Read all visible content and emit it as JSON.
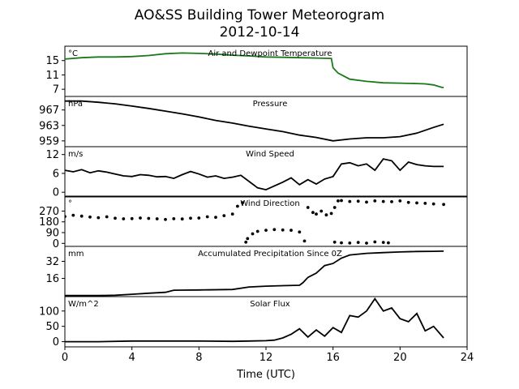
{
  "figure": {
    "title_line1": "AO&SS Building Tower Meteorogram",
    "title_line2": "2012-10-14",
    "xlabel": "Time (UTC)",
    "x_ticks": [
      "0",
      "4",
      "8",
      "12",
      "16",
      "20",
      "24"
    ]
  },
  "chart_data": [
    {
      "type": "line",
      "title": "Air and Dewpoint Temperature",
      "unit": "°C",
      "xlim": [
        0,
        24
      ],
      "ylim": [
        5,
        19
      ],
      "yticks": [
        7,
        11,
        15
      ],
      "color": "#1a7a1a",
      "series": [
        {
          "x": [
            0,
            1,
            2,
            3,
            4,
            5,
            6,
            7,
            8,
            9,
            10,
            11,
            12,
            13,
            14,
            15,
            15.9,
            16,
            16.3,
            17,
            18,
            19,
            20,
            21,
            21.5,
            22,
            22.5,
            22.6
          ],
          "values": [
            15.4,
            15.8,
            16.0,
            16.0,
            16.1,
            16.4,
            16.9,
            17.1,
            17.0,
            16.8,
            16.5,
            16.3,
            16.0,
            15.9,
            15.8,
            15.7,
            15.6,
            13.0,
            11.5,
            9.8,
            9.2,
            8.8,
            8.7,
            8.6,
            8.5,
            8.2,
            7.5,
            7.5
          ]
        }
      ]
    },
    {
      "type": "line",
      "title": "Pressure",
      "unit": "hPa",
      "xlim": [
        0,
        24
      ],
      "ylim": [
        957.5,
        970.5
      ],
      "yticks": [
        959,
        963,
        967
      ],
      "color": "#000000",
      "series": [
        {
          "x": [
            0,
            1,
            2,
            3,
            4,
            5,
            6,
            7,
            8,
            9,
            10,
            11,
            12,
            13,
            14,
            15,
            16,
            17,
            18,
            19,
            20,
            21,
            22,
            22.6
          ],
          "values": [
            969.3,
            969.3,
            969.0,
            968.6,
            968.0,
            967.4,
            966.7,
            966.0,
            965.2,
            964.3,
            963.6,
            962.8,
            962.1,
            961.4,
            960.5,
            959.9,
            959.0,
            959.5,
            959.8,
            959.8,
            960.1,
            961.0,
            962.5,
            963.3
          ]
        }
      ]
    },
    {
      "type": "line",
      "title": "Wind Speed",
      "unit": "m/s",
      "xlim": [
        0,
        24
      ],
      "ylim": [
        -1.5,
        14.5
      ],
      "yticks": [
        0,
        6,
        12
      ],
      "color": "#000000",
      "series": [
        {
          "x": [
            0,
            0.5,
            1,
            1.5,
            2,
            2.5,
            3,
            3.5,
            4,
            4.5,
            5,
            5.5,
            6,
            6.5,
            7,
            7.5,
            8,
            8.5,
            9,
            9.5,
            10,
            10.5,
            11,
            11.5,
            12,
            12.5,
            13,
            13.5,
            14,
            14.5,
            15,
            15.5,
            16,
            16.5,
            17,
            17.5,
            18,
            18.5,
            19,
            19.5,
            20,
            20.5,
            21,
            21.5,
            22,
            22.6
          ],
          "values": [
            7,
            6.5,
            7.2,
            6.2,
            6.8,
            6.4,
            5.8,
            5.2,
            5.0,
            5.6,
            5.4,
            4.9,
            5.0,
            4.4,
            5.6,
            6.6,
            5.8,
            4.8,
            5.2,
            4.4,
            4.8,
            5.4,
            3.4,
            1.4,
            0.8,
            2.0,
            3.2,
            4.6,
            2.4,
            4.0,
            2.6,
            4.2,
            5.0,
            9.0,
            9.4,
            8.4,
            9.0,
            7.0,
            10.6,
            10.0,
            7.0,
            9.6,
            8.8,
            8.4,
            8.2,
            8.2
          ]
        }
      ]
    },
    {
      "type": "scatter",
      "title": "Wind Direction",
      "unit": "°",
      "xlim": [
        0,
        24
      ],
      "ylim": [
        -25,
        395
      ],
      "yticks": [
        0,
        90,
        180,
        270
      ],
      "color": "#000000",
      "series": [
        {
          "x": [
            0,
            0.5,
            1,
            1.5,
            2,
            2.5,
            3,
            3.5,
            4,
            4.5,
            5,
            5.5,
            6,
            6.5,
            7,
            7.5,
            8,
            8.5,
            9,
            9.5,
            10,
            10.3,
            10.6,
            10.8,
            10.9,
            11.2,
            11.5,
            12,
            12.5,
            13,
            13.5,
            14,
            14.3,
            14.5,
            14.8,
            15,
            15.3,
            15.6,
            15.9,
            16.1,
            16.3,
            16.5,
            17,
            17.5,
            18,
            18.5,
            19,
            19.5,
            20,
            20.5,
            21,
            21.5,
            22,
            22.6,
            16.1,
            16.5,
            17,
            17.5,
            18,
            18.5,
            19,
            19.3
          ],
          "values": [
            225,
            235,
            228,
            220,
            215,
            222,
            210,
            205,
            207,
            212,
            209,
            205,
            200,
            206,
            204,
            210,
            212,
            222,
            218,
            232,
            245,
            310,
            340,
            10,
            40,
            80,
            100,
            110,
            115,
            112,
            110,
            95,
            20,
            300,
            258,
            245,
            270,
            238,
            250,
            300,
            355,
            358,
            350,
            352,
            345,
            355,
            350,
            348,
            355,
            342,
            338,
            335,
            330,
            325,
            10,
            5,
            3,
            8,
            2,
            12,
            8,
            5
          ]
        }
      ]
    },
    {
      "type": "line",
      "title": "Accumulated Precipitation Since 0Z",
      "unit": "mm",
      "xlim": [
        0,
        24
      ],
      "ylim": [
        -1,
        46
      ],
      "yticks": [
        16,
        32
      ],
      "color": "#000000",
      "series": [
        {
          "x": [
            0,
            2,
            3,
            4,
            5,
            6,
            6.5,
            7,
            8,
            10,
            11,
            12,
            13,
            14,
            14.2,
            14.5,
            15,
            15.5,
            16,
            16.5,
            17,
            18,
            19,
            20,
            21,
            22,
            22.6
          ],
          "values": [
            0,
            0,
            0.3,
            1.2,
            2.2,
            3.0,
            5.0,
            5.1,
            5.2,
            5.7,
            8.0,
            8.8,
            9.2,
            9.6,
            12,
            17,
            21,
            28,
            30,
            35,
            38,
            39.5,
            40.2,
            40.8,
            41.2,
            41.4,
            41.5
          ]
        }
      ]
    },
    {
      "type": "line",
      "title": "Solar Flux",
      "unit": "W/m^2",
      "xlim": [
        0,
        24
      ],
      "ylim": [
        -17,
        147
      ],
      "yticks": [
        0,
        50,
        100
      ],
      "color": "#000000",
      "series": [
        {
          "x": [
            0,
            2,
            4,
            6,
            8,
            10,
            11,
            12,
            12.5,
            13,
            13.5,
            14,
            14.5,
            15,
            15.5,
            16,
            16.5,
            17,
            17.5,
            18,
            18.5,
            19,
            19.5,
            20,
            20.5,
            21,
            21.5,
            22,
            22.6
          ],
          "values": [
            0,
            0,
            2,
            2,
            2,
            1,
            2,
            3,
            5,
            12,
            24,
            42,
            15,
            38,
            18,
            46,
            30,
            85,
            80,
            100,
            140,
            100,
            110,
            75,
            65,
            92,
            35,
            50,
            12
          ]
        }
      ]
    }
  ]
}
